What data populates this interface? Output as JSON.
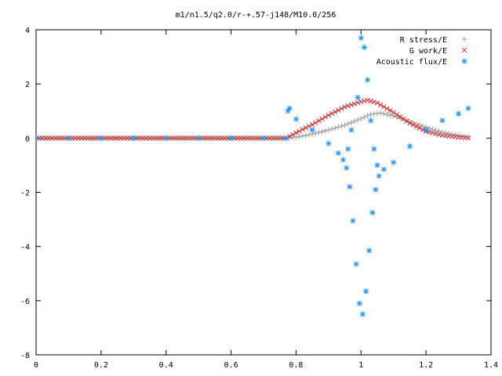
{
  "chart_data": {
    "type": "scatter",
    "title": "m1/n1.5/q2.0/r-+.57-j148/M10.0/256",
    "xlabel": "",
    "ylabel": "",
    "xlim": [
      0,
      1.4
    ],
    "ylim": [
      -8,
      4
    ],
    "xticks": [
      "0",
      "0.2",
      "0.4",
      "0.6",
      "0.8",
      "1",
      "1.2",
      "1.4"
    ],
    "yticks": [
      "4",
      "2",
      "0",
      "-2",
      "-4",
      "-6",
      "-8"
    ],
    "grid": false,
    "legend_position": "top-right",
    "series": [
      {
        "name": "R stress/E",
        "marker": "plus",
        "color": "#a0a0a0",
        "points": [
          [
            0,
            0
          ],
          [
            0.1,
            0
          ],
          [
            0.2,
            0
          ],
          [
            0.3,
            0
          ],
          [
            0.4,
            0
          ],
          [
            0.5,
            0
          ],
          [
            0.6,
            0
          ],
          [
            0.7,
            0
          ],
          [
            0.77,
            0
          ],
          [
            0.8,
            0.03
          ],
          [
            0.85,
            0.15
          ],
          [
            0.9,
            0.3
          ],
          [
            0.95,
            0.48
          ],
          [
            1.0,
            0.72
          ],
          [
            1.03,
            0.88
          ],
          [
            1.06,
            0.93
          ],
          [
            1.1,
            0.82
          ],
          [
            1.15,
            0.62
          ],
          [
            1.2,
            0.4
          ],
          [
            1.25,
            0.22
          ],
          [
            1.3,
            0.1
          ],
          [
            1.33,
            0.04
          ]
        ]
      },
      {
        "name": "G work/E",
        "marker": "cross",
        "color": "#d03030",
        "points": [
          [
            0,
            0
          ],
          [
            0.1,
            0
          ],
          [
            0.2,
            0
          ],
          [
            0.3,
            0
          ],
          [
            0.4,
            0
          ],
          [
            0.5,
            0
          ],
          [
            0.6,
            0
          ],
          [
            0.7,
            0
          ],
          [
            0.77,
            0
          ],
          [
            0.8,
            0.2
          ],
          [
            0.85,
            0.5
          ],
          [
            0.9,
            0.85
          ],
          [
            0.95,
            1.15
          ],
          [
            1.0,
            1.35
          ],
          [
            1.02,
            1.4
          ],
          [
            1.05,
            1.3
          ],
          [
            1.1,
            0.95
          ],
          [
            1.15,
            0.55
          ],
          [
            1.2,
            0.25
          ],
          [
            1.25,
            0.1
          ],
          [
            1.3,
            0.03
          ],
          [
            1.33,
            0.01
          ]
        ]
      },
      {
        "name": "Acoustic flux/E",
        "marker": "star",
        "color": "#1e90ff",
        "points": [
          [
            0,
            0
          ],
          [
            0.1,
            0
          ],
          [
            0.2,
            0
          ],
          [
            0.3,
            0
          ],
          [
            0.4,
            0
          ],
          [
            0.5,
            0
          ],
          [
            0.6,
            0
          ],
          [
            0.7,
            0
          ],
          [
            0.77,
            0
          ],
          [
            0.775,
            1.0
          ],
          [
            0.78,
            1.1
          ],
          [
            0.8,
            0.7
          ],
          [
            0.85,
            0.3
          ],
          [
            0.9,
            -0.2
          ],
          [
            0.93,
            -0.55
          ],
          [
            0.945,
            -0.8
          ],
          [
            0.955,
            -1.1
          ],
          [
            0.96,
            -0.4
          ],
          [
            0.965,
            -1.8
          ],
          [
            0.97,
            0.3
          ],
          [
            0.975,
            -3.05
          ],
          [
            0.985,
            -4.65
          ],
          [
            0.99,
            1.5
          ],
          [
            0.995,
            -6.1
          ],
          [
            1.0,
            3.7
          ],
          [
            1.005,
            -6.5
          ],
          [
            1.01,
            3.35
          ],
          [
            1.015,
            -5.65
          ],
          [
            1.02,
            2.15
          ],
          [
            1.025,
            -4.15
          ],
          [
            1.03,
            0.65
          ],
          [
            1.035,
            -2.75
          ],
          [
            1.04,
            -0.4
          ],
          [
            1.045,
            -1.9
          ],
          [
            1.05,
            -1.0
          ],
          [
            1.055,
            -1.4
          ],
          [
            1.07,
            -1.15
          ],
          [
            1.1,
            -0.9
          ],
          [
            1.15,
            -0.3
          ],
          [
            1.2,
            0.3
          ],
          [
            1.25,
            0.65
          ],
          [
            1.3,
            0.9
          ],
          [
            1.33,
            1.1
          ]
        ]
      }
    ]
  }
}
